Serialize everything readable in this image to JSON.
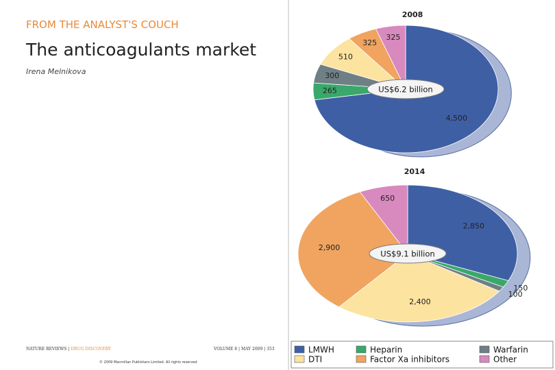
{
  "header": {
    "section": "FROM THE ANALYST'S COUCH",
    "title": "The anticoagulants market",
    "author": "Irena Melnikova"
  },
  "footer": {
    "journal": "NATURE REVIEWS",
    "journal_section": "DRUG DISCOVERY",
    "volume": "VOLUME 8 | MAY 2009 | 353",
    "copyright": "© 2009 Macmillan Publishers Limited. All rights reserved"
  },
  "chart_data": [
    {
      "type": "pie",
      "title": "2008",
      "center_label": "US$6.2 billion",
      "categories": [
        "LMWH",
        "Heparin",
        "Warfarin",
        "DTI",
        "Factor Xa inhibitors",
        "Other"
      ],
      "values": [
        4500,
        265,
        300,
        510,
        325,
        325
      ],
      "value_labels": [
        "4,500",
        "265",
        "300",
        "510",
        "325",
        "325"
      ],
      "colors": [
        "#3f5fa5",
        "#3aa86b",
        "#6f7f86",
        "#fde3a0",
        "#f0a460",
        "#d889be"
      ]
    },
    {
      "type": "pie",
      "title": "2014",
      "center_label": "US$9.1 billion",
      "categories": [
        "LMWH",
        "Heparin",
        "Warfarin",
        "DTI",
        "Factor Xa inhibitors",
        "Other"
      ],
      "values": [
        2850,
        150,
        100,
        2400,
        2900,
        650
      ],
      "value_labels": [
        "2,850",
        "150",
        "100",
        "2,400",
        "2,900",
        "650"
      ],
      "colors": [
        "#3f5fa5",
        "#3aa86b",
        "#6f7f86",
        "#fde3a0",
        "#f0a460",
        "#d889be"
      ]
    }
  ]
}
